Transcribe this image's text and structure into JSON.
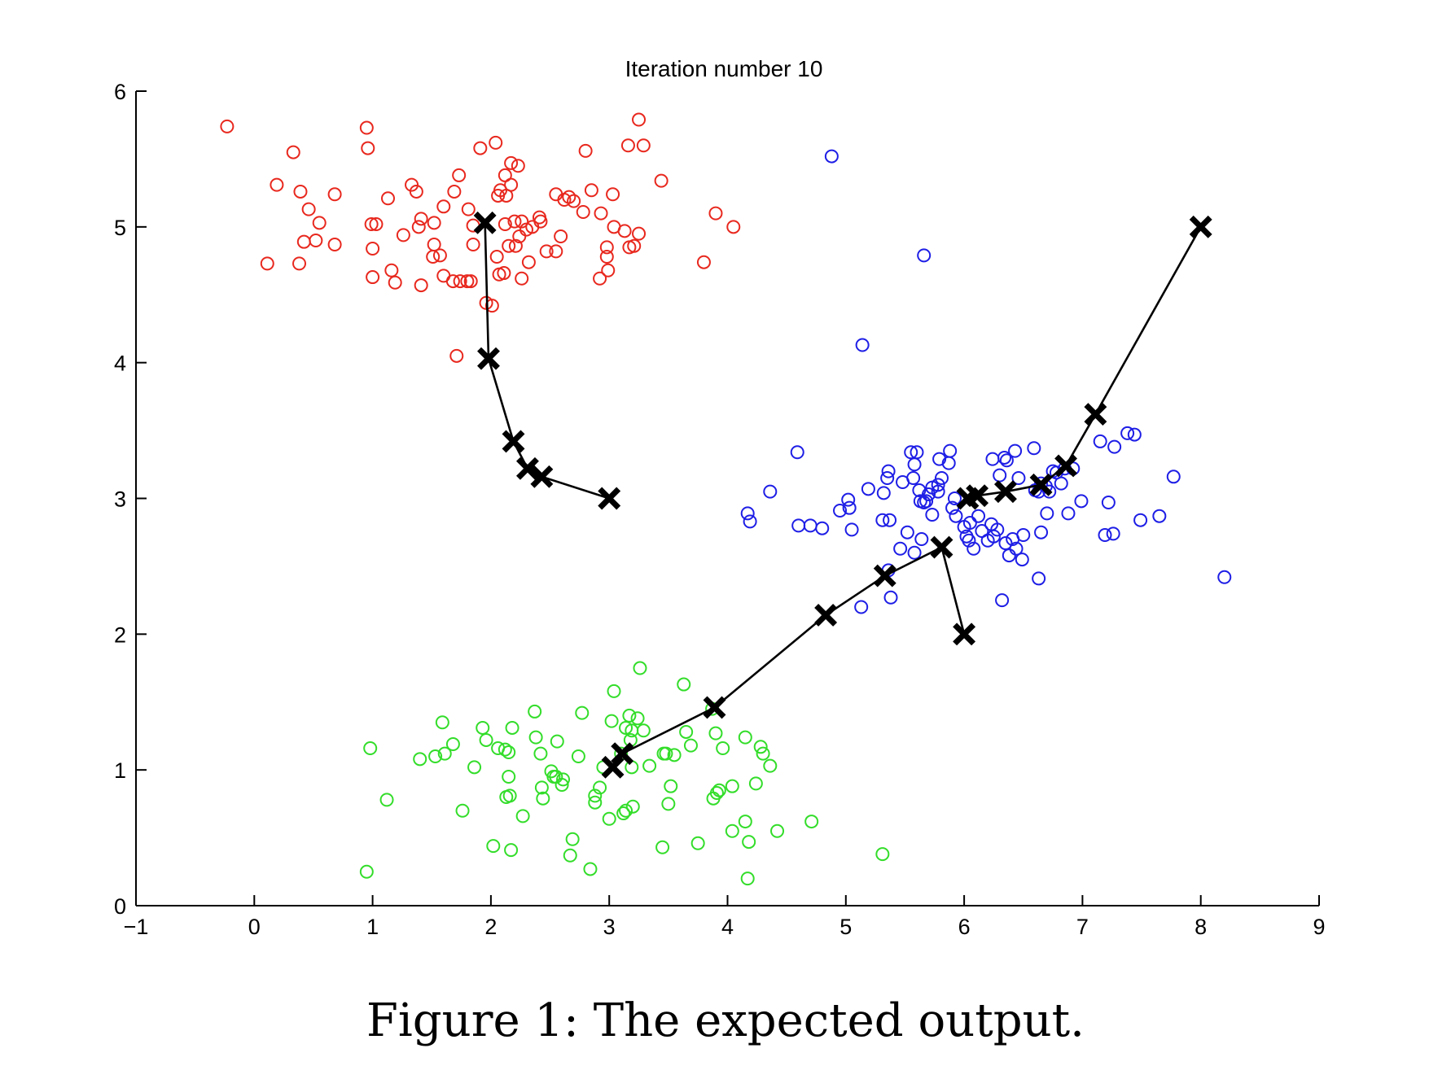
{
  "caption": "Figure 1: The expected output.",
  "chart_data": {
    "type": "scatter",
    "title": "Iteration number 10",
    "xlabel": "",
    "ylabel": "",
    "xlim": [
      -1,
      9
    ],
    "ylim": [
      0,
      6
    ],
    "xticks": [
      "−1",
      "0",
      "1",
      "2",
      "3",
      "4",
      "5",
      "6",
      "7",
      "8",
      "9"
    ],
    "yticks": [
      "0",
      "1",
      "2",
      "3",
      "4",
      "5",
      "6"
    ],
    "grid": false,
    "legend": "none",
    "series": [
      {
        "color": "#e8281e",
        "marker": "circle-open",
        "points": [
          [
            -0.23,
            5.74
          ],
          [
            0.33,
            5.55
          ],
          [
            0.19,
            5.31
          ],
          [
            0.39,
            5.26
          ],
          [
            0.46,
            5.13
          ],
          [
            0.55,
            5.03
          ],
          [
            0.68,
            5.24
          ],
          [
            0.42,
            4.89
          ],
          [
            0.52,
            4.9
          ],
          [
            0.68,
            4.87
          ],
          [
            0.11,
            4.73
          ],
          [
            0.38,
            4.73
          ],
          [
            0.95,
            5.73
          ],
          [
            0.96,
            5.58
          ],
          [
            1.13,
            5.21
          ],
          [
            1.33,
            5.31
          ],
          [
            1.37,
            5.26
          ],
          [
            1.41,
            5.06
          ],
          [
            1.39,
            5.0
          ],
          [
            1.26,
            4.94
          ],
          [
            0.99,
            5.02
          ],
          [
            1.03,
            5.02
          ],
          [
            1.0,
            4.84
          ],
          [
            1.16,
            4.68
          ],
          [
            1.19,
            4.59
          ],
          [
            1.0,
            4.63
          ],
          [
            1.41,
            4.57
          ],
          [
            1.52,
            5.03
          ],
          [
            1.6,
            5.15
          ],
          [
            1.52,
            4.87
          ],
          [
            1.51,
            4.78
          ],
          [
            1.57,
            4.79
          ],
          [
            1.6,
            4.64
          ],
          [
            1.68,
            4.6
          ],
          [
            1.74,
            4.6
          ],
          [
            1.8,
            4.6
          ],
          [
            1.83,
            4.6
          ],
          [
            1.69,
            5.26
          ],
          [
            1.73,
            5.38
          ],
          [
            1.81,
            5.13
          ],
          [
            1.85,
            5.01
          ],
          [
            1.85,
            4.87
          ],
          [
            1.91,
            5.58
          ],
          [
            2.04,
            5.62
          ],
          [
            2.17,
            5.47
          ],
          [
            2.23,
            5.45
          ],
          [
            2.12,
            5.38
          ],
          [
            2.17,
            5.31
          ],
          [
            2.13,
            5.23
          ],
          [
            2.06,
            5.23
          ],
          [
            2.08,
            5.27
          ],
          [
            2.12,
            5.02
          ],
          [
            2.2,
            5.04
          ],
          [
            2.26,
            5.04
          ],
          [
            2.3,
            4.98
          ],
          [
            2.24,
            4.93
          ],
          [
            2.21,
            4.86
          ],
          [
            2.15,
            4.86
          ],
          [
            2.05,
            4.78
          ],
          [
            2.11,
            4.66
          ],
          [
            2.07,
            4.65
          ],
          [
            2.26,
            4.62
          ],
          [
            2.32,
            4.74
          ],
          [
            2.35,
            5.0
          ],
          [
            2.41,
            5.07
          ],
          [
            2.42,
            5.04
          ],
          [
            2.47,
            4.82
          ],
          [
            2.55,
            4.82
          ],
          [
            2.59,
            4.93
          ],
          [
            2.55,
            5.24
          ],
          [
            2.62,
            5.2
          ],
          [
            2.66,
            5.22
          ],
          [
            2.7,
            5.19
          ],
          [
            2.8,
            5.56
          ],
          [
            2.78,
            5.11
          ],
          [
            2.85,
            5.27
          ],
          [
            2.93,
            5.1
          ],
          [
            2.98,
            4.85
          ],
          [
            2.98,
            4.78
          ],
          [
            2.99,
            4.68
          ],
          [
            2.92,
            4.62
          ],
          [
            3.03,
            5.24
          ],
          [
            3.04,
            5.0
          ],
          [
            3.13,
            4.97
          ],
          [
            3.17,
            4.85
          ],
          [
            3.21,
            4.86
          ],
          [
            3.25,
            4.95
          ],
          [
            3.16,
            5.6
          ],
          [
            3.25,
            5.79
          ],
          [
            3.29,
            5.6
          ],
          [
            3.44,
            5.34
          ],
          [
            3.9,
            5.1
          ],
          [
            4.05,
            5.0
          ],
          [
            3.8,
            4.74
          ],
          [
            1.96,
            4.44
          ],
          [
            2.01,
            4.42
          ],
          [
            1.71,
            4.05
          ]
        ]
      },
      {
        "color": "#1e1ee6",
        "marker": "circle-open",
        "points": [
          [
            4.88,
            5.52
          ],
          [
            5.66,
            4.79
          ],
          [
            5.14,
            4.13
          ],
          [
            4.59,
            3.34
          ],
          [
            4.36,
            3.05
          ],
          [
            4.17,
            2.89
          ],
          [
            4.19,
            2.83
          ],
          [
            4.6,
            2.8
          ],
          [
            4.7,
            2.8
          ],
          [
            4.8,
            2.78
          ],
          [
            4.95,
            2.91
          ],
          [
            5.02,
            2.99
          ],
          [
            5.03,
            2.93
          ],
          [
            5.05,
            2.77
          ],
          [
            5.19,
            3.07
          ],
          [
            5.32,
            3.04
          ],
          [
            5.35,
            3.15
          ],
          [
            5.36,
            3.2
          ],
          [
            5.31,
            2.84
          ],
          [
            5.37,
            2.84
          ],
          [
            5.46,
            2.63
          ],
          [
            5.52,
            2.75
          ],
          [
            5.58,
            2.6
          ],
          [
            5.55,
            3.34
          ],
          [
            5.6,
            3.34
          ],
          [
            5.58,
            3.25
          ],
          [
            5.48,
            3.12
          ],
          [
            5.57,
            3.15
          ],
          [
            5.62,
            3.06
          ],
          [
            5.63,
            2.98
          ],
          [
            5.66,
            2.97
          ],
          [
            5.7,
            3.03
          ],
          [
            5.73,
            3.08
          ],
          [
            5.78,
            3.1
          ],
          [
            5.78,
            3.05
          ],
          [
            5.81,
            3.15
          ],
          [
            5.79,
            3.29
          ],
          [
            5.87,
            3.26
          ],
          [
            5.88,
            3.35
          ],
          [
            5.92,
            3.0
          ],
          [
            5.9,
            2.93
          ],
          [
            5.93,
            2.87
          ],
          [
            5.73,
            2.88
          ],
          [
            5.68,
            2.98
          ],
          [
            5.64,
            2.7
          ],
          [
            5.36,
            2.47
          ],
          [
            5.38,
            2.27
          ],
          [
            5.13,
            2.2
          ],
          [
            6.0,
            2.79
          ],
          [
            6.02,
            2.72
          ],
          [
            6.04,
            2.69
          ],
          [
            6.08,
            2.63
          ],
          [
            6.05,
            2.82
          ],
          [
            6.12,
            2.87
          ],
          [
            6.15,
            2.76
          ],
          [
            6.2,
            2.69
          ],
          [
            6.25,
            2.72
          ],
          [
            6.23,
            2.81
          ],
          [
            6.28,
            2.77
          ],
          [
            6.35,
            2.67
          ],
          [
            6.38,
            2.58
          ],
          [
            6.41,
            2.7
          ],
          [
            6.44,
            2.63
          ],
          [
            6.49,
            2.55
          ],
          [
            6.5,
            2.73
          ],
          [
            6.65,
            2.75
          ],
          [
            6.24,
            3.29
          ],
          [
            6.34,
            3.3
          ],
          [
            6.43,
            3.35
          ],
          [
            6.36,
            3.28
          ],
          [
            6.3,
            3.17
          ],
          [
            6.46,
            3.15
          ],
          [
            6.59,
            3.37
          ],
          [
            6.6,
            3.06
          ],
          [
            6.63,
            3.05
          ],
          [
            6.65,
            3.11
          ],
          [
            6.69,
            3.09
          ],
          [
            6.72,
            3.05
          ],
          [
            6.75,
            3.2
          ],
          [
            6.78,
            3.19
          ],
          [
            6.82,
            3.11
          ],
          [
            6.85,
            3.22
          ],
          [
            6.92,
            3.22
          ],
          [
            6.7,
            2.89
          ],
          [
            6.88,
            2.89
          ],
          [
            6.99,
            2.98
          ],
          [
            6.32,
            2.25
          ],
          [
            6.63,
            2.41
          ],
          [
            7.15,
            3.42
          ],
          [
            7.27,
            3.38
          ],
          [
            7.38,
            3.48
          ],
          [
            7.44,
            3.47
          ],
          [
            7.22,
            2.97
          ],
          [
            7.19,
            2.73
          ],
          [
            7.26,
            2.74
          ],
          [
            7.49,
            2.84
          ],
          [
            7.65,
            2.87
          ],
          [
            7.77,
            3.16
          ],
          [
            8.2,
            2.42
          ]
        ]
      },
      {
        "color": "#33dd2a",
        "marker": "circle-open",
        "points": [
          [
            0.95,
            0.25
          ],
          [
            0.98,
            1.16
          ],
          [
            1.12,
            0.78
          ],
          [
            1.4,
            1.08
          ],
          [
            1.53,
            1.1
          ],
          [
            1.61,
            1.12
          ],
          [
            1.68,
            1.19
          ],
          [
            1.59,
            1.35
          ],
          [
            1.76,
            0.7
          ],
          [
            1.86,
            1.02
          ],
          [
            1.93,
            1.31
          ],
          [
            1.96,
            1.22
          ],
          [
            2.02,
            0.44
          ],
          [
            2.06,
            1.16
          ],
          [
            2.12,
            1.15
          ],
          [
            2.15,
            1.13
          ],
          [
            2.18,
            1.31
          ],
          [
            2.15,
            0.95
          ],
          [
            2.13,
            0.8
          ],
          [
            2.16,
            0.81
          ],
          [
            2.17,
            0.41
          ],
          [
            2.27,
            0.66
          ],
          [
            2.37,
            1.43
          ],
          [
            2.38,
            1.24
          ],
          [
            2.42,
            1.12
          ],
          [
            2.43,
            0.87
          ],
          [
            2.44,
            0.79
          ],
          [
            2.51,
            0.99
          ],
          [
            2.53,
            0.95
          ],
          [
            2.55,
            0.95
          ],
          [
            2.56,
            1.21
          ],
          [
            2.61,
            0.93
          ],
          [
            2.6,
            0.89
          ],
          [
            2.67,
            0.37
          ],
          [
            2.69,
            0.49
          ],
          [
            2.74,
            1.1
          ],
          [
            2.77,
            1.42
          ],
          [
            2.84,
            0.27
          ],
          [
            2.88,
            0.81
          ],
          [
            2.88,
            0.76
          ],
          [
            2.92,
            0.87
          ],
          [
            2.95,
            1.02
          ],
          [
            3.0,
            0.64
          ],
          [
            3.02,
            1.36
          ],
          [
            3.04,
            1.58
          ],
          [
            3.1,
            1.12
          ],
          [
            3.12,
            0.68
          ],
          [
            3.14,
            0.7
          ],
          [
            3.14,
            1.31
          ],
          [
            3.17,
            1.4
          ],
          [
            3.19,
            1.29
          ],
          [
            3.18,
            1.22
          ],
          [
            3.19,
            1.02
          ],
          [
            3.2,
            0.73
          ],
          [
            3.24,
            1.38
          ],
          [
            3.26,
            1.75
          ],
          [
            3.29,
            1.29
          ],
          [
            3.34,
            1.03
          ],
          [
            3.46,
            1.12
          ],
          [
            3.48,
            1.12
          ],
          [
            3.52,
            0.88
          ],
          [
            3.5,
            0.75
          ],
          [
            3.45,
            0.43
          ],
          [
            3.55,
            1.11
          ],
          [
            3.63,
            1.63
          ],
          [
            3.65,
            1.28
          ],
          [
            3.69,
            1.18
          ],
          [
            3.75,
            0.46
          ],
          [
            3.87,
            1.45
          ],
          [
            3.88,
            0.79
          ],
          [
            3.91,
            0.83
          ],
          [
            3.93,
            0.85
          ],
          [
            3.96,
            1.16
          ],
          [
            3.9,
            1.27
          ],
          [
            4.04,
            0.88
          ],
          [
            4.04,
            0.55
          ],
          [
            4.15,
            1.24
          ],
          [
            4.15,
            0.62
          ],
          [
            4.17,
            0.2
          ],
          [
            4.18,
            0.47
          ],
          [
            4.24,
            0.9
          ],
          [
            4.28,
            1.17
          ],
          [
            4.3,
            1.12
          ],
          [
            4.36,
            1.03
          ],
          [
            4.42,
            0.55
          ],
          [
            4.71,
            0.62
          ],
          [
            5.31,
            0.38
          ]
        ]
      }
    ],
    "trajectories": [
      [
        [
          3.0,
          3.0
        ],
        [
          2.43,
          3.16
        ],
        [
          2.31,
          3.22
        ],
        [
          2.19,
          3.42
        ],
        [
          1.98,
          4.03
        ],
        [
          1.95,
          5.03
        ]
      ],
      [
        [
          6.0,
          2.0
        ],
        [
          5.81,
          2.64
        ],
        [
          5.33,
          2.43
        ],
        [
          4.83,
          2.14
        ],
        [
          3.89,
          1.46
        ],
        [
          3.11,
          1.12
        ],
        [
          3.03,
          1.02
        ]
      ],
      [
        [
          8.0,
          5.0
        ],
        [
          7.11,
          3.62
        ],
        [
          6.86,
          3.24
        ],
        [
          6.65,
          3.1
        ],
        [
          6.35,
          3.05
        ],
        [
          6.11,
          3.02
        ],
        [
          6.03,
          3.0
        ]
      ]
    ],
    "centroid_marker": "x",
    "centroid_color": "#000000"
  }
}
